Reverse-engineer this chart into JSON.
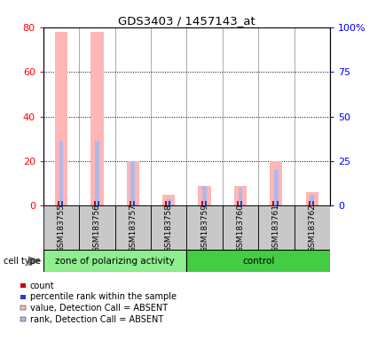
{
  "title": "GDS3403 / 1457143_at",
  "samples": [
    "GSM183755",
    "GSM183756",
    "GSM183757",
    "GSM183758",
    "GSM183759",
    "GSM183760",
    "GSM183761",
    "GSM183762"
  ],
  "pink_values": [
    78,
    78,
    20,
    5,
    9,
    9,
    20,
    6
  ],
  "blue_values": [
    29,
    29,
    20,
    3,
    9,
    8,
    16,
    5
  ],
  "ylim_left": [
    0,
    80
  ],
  "ylim_right": [
    0,
    100
  ],
  "yticks_left": [
    0,
    20,
    40,
    60,
    80
  ],
  "ytick_labels_left": [
    "0",
    "20",
    "40",
    "60",
    "80"
  ],
  "yticks_right": [
    0,
    25,
    50,
    75,
    100
  ],
  "ytick_labels_right": [
    "0",
    "25",
    "50",
    "75",
    "100%"
  ],
  "pink_color": "#ffb6b6",
  "blue_color": "#b0b8e8",
  "red_color": "#cc0000",
  "dark_blue_color": "#2244cc",
  "group1_color": "#90ee90",
  "group2_color": "#44cc44",
  "legend_items": [
    "count",
    "percentile rank within the sample",
    "value, Detection Call = ABSENT",
    "rank, Detection Call = ABSENT"
  ],
  "legend_colors": [
    "#cc0000",
    "#2244cc",
    "#ffb6b6",
    "#b0b8e8"
  ],
  "n_group1": 4,
  "n_group2": 4
}
